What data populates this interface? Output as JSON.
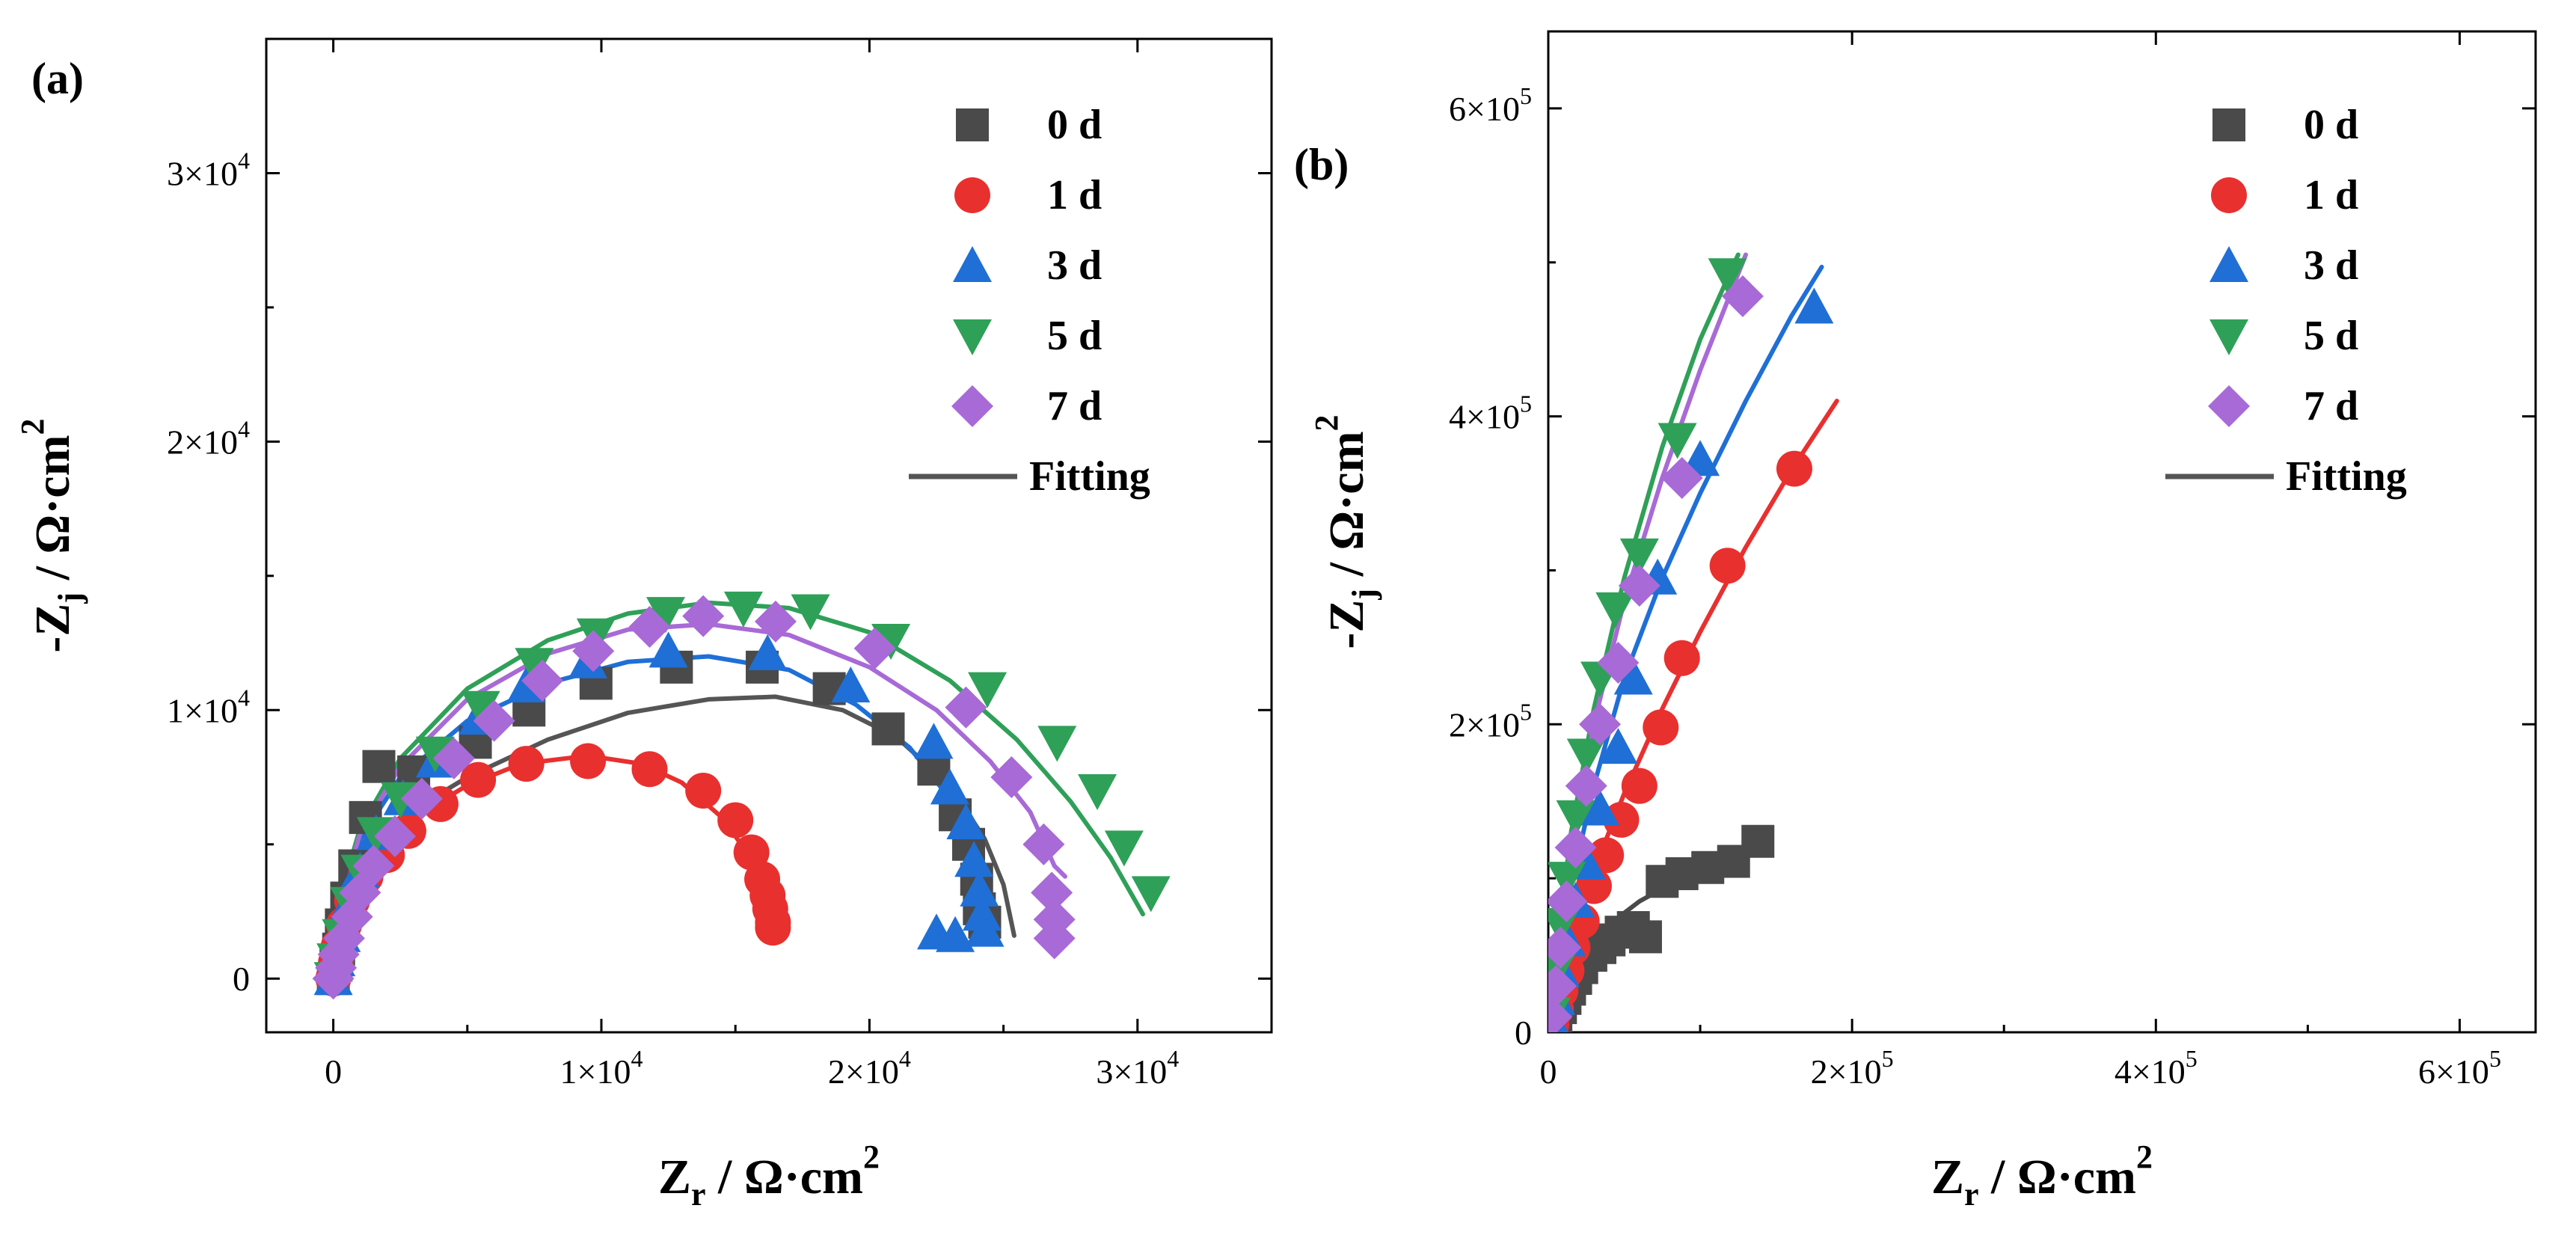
{
  "chart_data": [
    {
      "type": "scatter",
      "panel_label": "(a)",
      "xlabel": "Z_r / Ω·cm²",
      "ylabel": "-Z_j / Ω·cm²",
      "xlim": [
        -2500,
        35000
      ],
      "ylim": [
        -2000,
        35000
      ],
      "xticks": [
        0,
        10000,
        20000,
        30000
      ],
      "yticks": [
        0,
        10000,
        20000,
        30000
      ],
      "xtick_labels": [
        "0",
        "1×10",
        "2×10",
        "3×10"
      ],
      "ytick_labels": [
        "0",
        "1×10",
        "2×10",
        "3×10"
      ],
      "tick_exponent": "4",
      "legend_position": "top-right",
      "legend": [
        "0 d",
        "1 d",
        "3 d",
        "5 d",
        "7 d",
        "Fitting"
      ],
      "series": [
        {
          "name": "0 d",
          "marker": "square",
          "color": "#4a4a4a",
          "x": [
            0,
            100,
            200,
            300,
            500,
            800,
            1200,
            1700,
            3000,
            5300,
            7300,
            9800,
            12800,
            16000,
            18500,
            20700,
            22400,
            23200,
            23700,
            24000,
            24100,
            24300
          ],
          "y": [
            0,
            500,
            1100,
            2000,
            3000,
            4200,
            6000,
            7900,
            7700,
            8800,
            10000,
            11000,
            11600,
            11600,
            10800,
            9300,
            7800,
            6100,
            5000,
            3700,
            2600,
            2100
          ],
          "fit_x": [
            0,
            300,
            1000,
            2500,
            5000,
            8000,
            11000,
            14000,
            16500,
            19000,
            21000,
            23000,
            24300,
            25000,
            25400
          ],
          "fit_y": [
            0,
            2400,
            4200,
            6000,
            7500,
            8900,
            9900,
            10400,
            10500,
            10000,
            9000,
            7200,
            5200,
            3500,
            1600
          ]
        },
        {
          "name": "1 d",
          "marker": "circle",
          "color": "#e8302f",
          "x": [
            0,
            100,
            200,
            400,
            700,
            1200,
            2000,
            2800,
            4000,
            5400,
            7200,
            9500,
            11800,
            13800,
            15000,
            15600,
            16000,
            16200,
            16300,
            16400,
            16400
          ],
          "y": [
            0,
            600,
            1200,
            2000,
            2900,
            3800,
            4600,
            5500,
            6500,
            7400,
            8000,
            8100,
            7800,
            7000,
            5900,
            4700,
            3700,
            3100,
            2600,
            2100,
            1900
          ],
          "fit_x": [
            0,
            200,
            700,
            1500,
            3000,
            5000,
            7000,
            9500,
            11500,
            13000,
            14500,
            15500,
            16100,
            16500
          ],
          "fit_y": [
            0,
            1500,
            3000,
            4400,
            6000,
            7200,
            8000,
            8300,
            8000,
            7300,
            6000,
            4600,
            3300,
            1900
          ]
        },
        {
          "name": "3 d",
          "marker": "triangle-up",
          "color": "#1f6fd6",
          "x": [
            0,
            100,
            300,
            600,
            1000,
            1600,
            2600,
            3800,
            5400,
            7200,
            9500,
            12500,
            16200,
            19300,
            22400,
            23000,
            23600,
            23900,
            24100,
            24200,
            24300,
            22500,
            23200
          ],
          "y": [
            0,
            700,
            1600,
            2800,
            4000,
            5400,
            6700,
            8100,
            9700,
            10900,
            11800,
            12200,
            12100,
            10900,
            8800,
            7100,
            5800,
            4400,
            3300,
            2400,
            1800,
            1700,
            1600
          ],
          "fit_x": [
            0,
            300,
            1000,
            2500,
            5000,
            8000,
            11000,
            14000,
            17000,
            19500,
            21500,
            23000,
            24000,
            24500
          ],
          "fit_y": [
            0,
            3000,
            5200,
            7500,
            9600,
            11000,
            11800,
            12000,
            11500,
            10200,
            8600,
            6700,
            4800,
            2700
          ]
        },
        {
          "name": "5 d",
          "marker": "triangle-down",
          "color": "#2fa058",
          "x": [
            0,
            100,
            300,
            600,
            1000,
            1600,
            2500,
            3800,
            5500,
            7500,
            9800,
            12400,
            15300,
            17800,
            20800,
            24400,
            27000,
            28500,
            29500,
            30500
          ],
          "y": [
            0,
            700,
            1600,
            2800,
            4000,
            5400,
            6700,
            8400,
            10100,
            11700,
            12800,
            13600,
            13800,
            13700,
            12600,
            10800,
            8800,
            7000,
            4900,
            3200
          ],
          "fit_x": [
            0,
            300,
            1000,
            2500,
            5000,
            8000,
            11000,
            14000,
            17000,
            20000,
            23000,
            25500,
            27500,
            29000,
            30200
          ],
          "fit_y": [
            0,
            3200,
            5600,
            8200,
            10800,
            12600,
            13600,
            14000,
            13800,
            12900,
            11100,
            8900,
            6600,
            4500,
            2400
          ]
        },
        {
          "name": "7 d",
          "marker": "diamond",
          "color": "#a86ad6",
          "x": [
            0,
            100,
            200,
            400,
            700,
            1000,
            1500,
            2300,
            3300,
            4500,
            6000,
            7800,
            9700,
            11800,
            13800,
            16500,
            20200,
            23600,
            25300,
            26500,
            26800,
            26900,
            26900
          ],
          "y": [
            0,
            400,
            900,
            1500,
            2300,
            3200,
            4200,
            5300,
            6700,
            8200,
            9600,
            11100,
            12200,
            13100,
            13500,
            13300,
            12300,
            10100,
            7500,
            5000,
            3200,
            2200,
            1500
          ],
          "fit_x": [
            0,
            300,
            1000,
            2500,
            5000,
            8000,
            11000,
            14000,
            17000,
            20000,
            22500,
            24500,
            26000,
            26900,
            27300
          ],
          "fit_y": [
            0,
            3000,
            5400,
            7900,
            10400,
            12100,
            13000,
            13200,
            12800,
            11600,
            10000,
            8100,
            6200,
            4200,
            3800
          ]
        }
      ]
    },
    {
      "type": "scatter",
      "panel_label": "(b)",
      "xlabel": "Z_r / Ω·cm²",
      "ylabel": "-Z_j / Ω·cm²",
      "xlim": [
        0,
        650000
      ],
      "ylim": [
        0,
        650000
      ],
      "xticks": [
        0,
        200000,
        400000,
        600000
      ],
      "yticks": [
        0,
        200000,
        400000,
        600000
      ],
      "xtick_labels": [
        "0",
        "2×10",
        "4×10",
        "6×10"
      ],
      "ytick_labels": [
        "0",
        "2×10",
        "4×10",
        "6×10"
      ],
      "tick_exponent": "5",
      "legend_position": "top-right",
      "legend": [
        "0 d",
        "1 d",
        "3 d",
        "5 d",
        "7 d",
        "Fitting"
      ],
      "series": [
        {
          "name": "0 d",
          "marker": "square",
          "color": "#4a4a4a",
          "x": [
            1000,
            3000,
            5000,
            8000,
            11000,
            14000,
            18000,
            22000,
            28000,
            34000,
            40000,
            48000,
            56000,
            64000,
            75000,
            88000,
            105000,
            122000,
            138000
          ],
          "y": [
            2000,
            6000,
            10000,
            16000,
            22000,
            28000,
            35000,
            42000,
            50000,
            55000,
            60000,
            65000,
            68000,
            62000,
            98000,
            103000,
            107000,
            111000,
            124000
          ],
          "fit_x": [
            0,
            3000,
            8000,
            15000,
            25000,
            40000,
            60000,
            80000,
            100000,
            120000,
            135000
          ],
          "fit_y": [
            0,
            12000,
            25000,
            40000,
            55000,
            70000,
            85000,
            96000,
            105000,
            112000,
            118000
          ]
        },
        {
          "name": "1 d",
          "marker": "circle",
          "color": "#e8302f",
          "x": [
            2000,
            5000,
            8000,
            12000,
            16000,
            22000,
            30000,
            38000,
            48000,
            60000,
            74000,
            88000,
            118000,
            162000
          ],
          "y": [
            5000,
            15000,
            27000,
            40000,
            55000,
            72000,
            95000,
            115000,
            138000,
            160000,
            198000,
            243000,
            303000,
            366000
          ],
          "fit_x": [
            0,
            5000,
            15000,
            30000,
            50000,
            75000,
            100000,
            130000,
            160000,
            190000
          ],
          "fit_y": [
            0,
            22000,
            60000,
            105000,
            155000,
            210000,
            260000,
            315000,
            365000,
            410000
          ]
        },
        {
          "name": "3 d",
          "marker": "triangle-up",
          "color": "#1f6fd6",
          "x": [
            2000,
            5000,
            8000,
            12000,
            18000,
            25000,
            34000,
            46000,
            56000,
            72000,
            100000,
            175000
          ],
          "y": [
            8000,
            22000,
            40000,
            60000,
            85000,
            110000,
            145000,
            185000,
            230000,
            295000,
            372000,
            471000
          ],
          "fit_x": [
            0,
            5000,
            15000,
            30000,
            50000,
            75000,
            100000,
            130000,
            160000,
            180000
          ],
          "fit_y": [
            0,
            35000,
            95000,
            160000,
            230000,
            295000,
            350000,
            410000,
            465000,
            497000
          ]
        },
        {
          "name": "5 d",
          "marker": "triangle-down",
          "color": "#2fa058",
          "x": [
            2000,
            5000,
            8000,
            12000,
            18000,
            25000,
            34000,
            44000,
            60000,
            85000,
            118000
          ],
          "y": [
            12000,
            40000,
            70000,
            100000,
            140000,
            180000,
            230000,
            275000,
            310000,
            385000,
            492000
          ],
          "fit_x": [
            0,
            5000,
            15000,
            30000,
            50000,
            75000,
            100000,
            125000
          ],
          "fit_y": [
            0,
            50000,
            130000,
            210000,
            295000,
            380000,
            450000,
            505000
          ]
        },
        {
          "name": "7 d",
          "marker": "diamond",
          "color": "#a86ad6",
          "x": [
            2000,
            5000,
            8000,
            12000,
            18000,
            25000,
            34000,
            46000,
            60000,
            88000,
            128000
          ],
          "y": [
            10000,
            30000,
            55000,
            85000,
            120000,
            160000,
            200000,
            240000,
            290000,
            360000,
            478000
          ],
          "fit_x": [
            0,
            5000,
            15000,
            30000,
            50000,
            75000,
            100000,
            130000
          ],
          "fit_y": [
            0,
            45000,
            120000,
            200000,
            280000,
            360000,
            430000,
            505000
          ]
        }
      ]
    }
  ]
}
